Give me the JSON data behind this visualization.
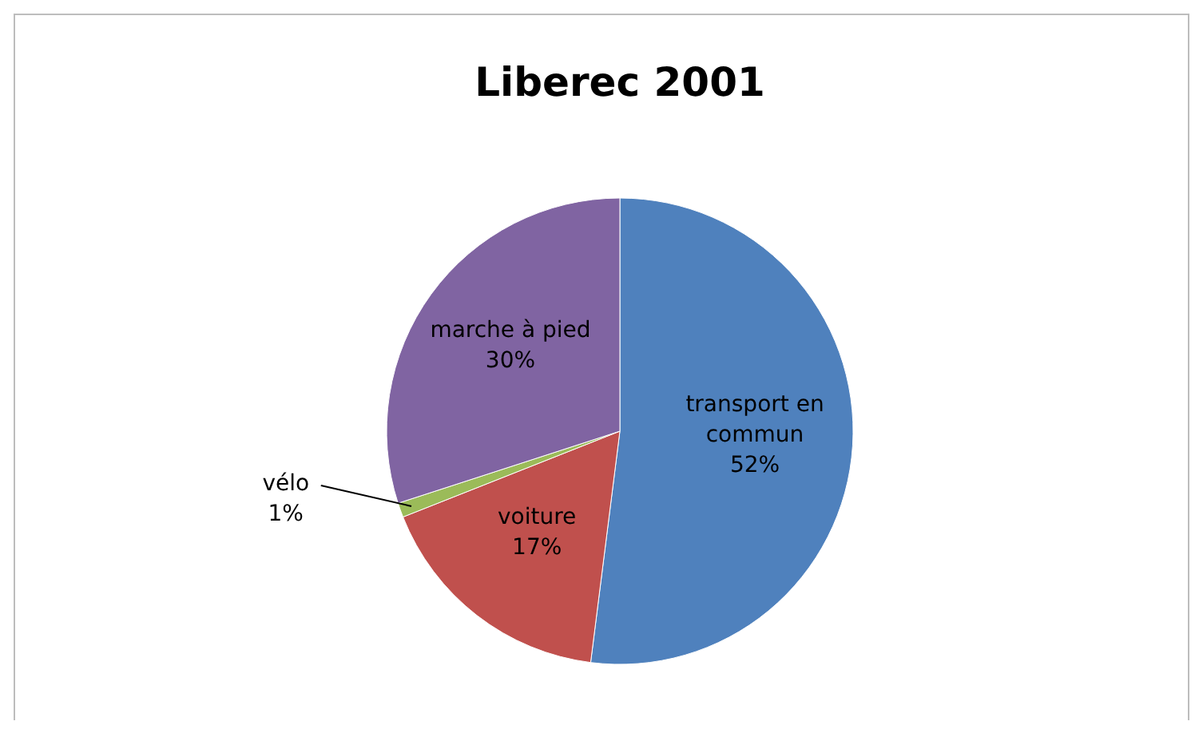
{
  "chart_data": {
    "type": "pie",
    "title": "Liberec 2001",
    "categories": [
      "transport en commun",
      "voiture",
      "vélo",
      "marche à pied"
    ],
    "values": [
      52,
      17,
      1,
      30
    ],
    "value_labels": [
      "52%",
      "17%",
      "1%",
      "30%"
    ],
    "colors": [
      "#4f81bd",
      "#c0504d",
      "#9bbb59",
      "#8064a2"
    ]
  }
}
